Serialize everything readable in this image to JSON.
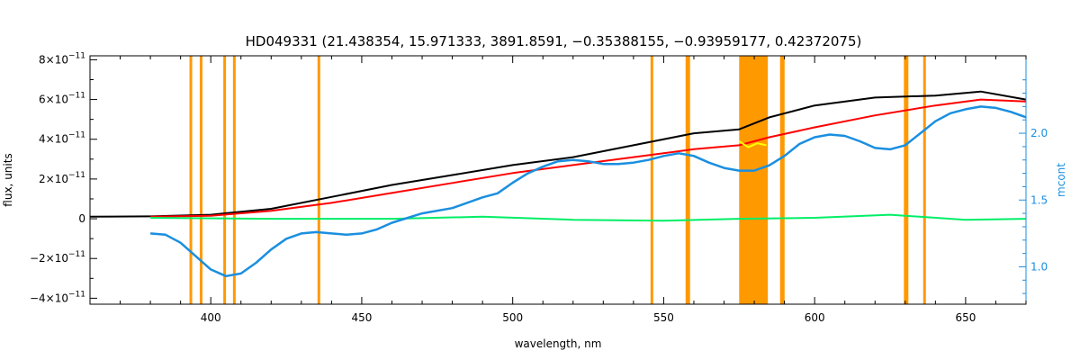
{
  "chart_data": {
    "type": "line",
    "title": "HD049331    (21.438354, 15.971333, 3891.8591, −0.35388155, −0.93959177, 0.42372075)",
    "xlabel": "wavelength, nm",
    "ylabel": "flux, units",
    "ylabel_right": "mcont",
    "xlim": [
      360,
      670
    ],
    "ylim": [
      -4.3e-11,
      8.2e-11
    ],
    "ylim_right": [
      0.72,
      2.58
    ],
    "grid": false,
    "x_ticks": [
      {
        "value": 400,
        "label": "400"
      },
      {
        "value": 450,
        "label": "450"
      },
      {
        "value": 500,
        "label": "500"
      },
      {
        "value": 550,
        "label": "550"
      },
      {
        "value": 600,
        "label": "600"
      },
      {
        "value": 650,
        "label": "650"
      }
    ],
    "y_ticks": [
      {
        "value": 8e-11,
        "mant": "8×10",
        "exp": "−11"
      },
      {
        "value": 6e-11,
        "mant": "6×10",
        "exp": "−11"
      },
      {
        "value": 4e-11,
        "mant": "4×10",
        "exp": "−11"
      },
      {
        "value": 2e-11,
        "mant": "2×10",
        "exp": "−11"
      },
      {
        "value": 0,
        "mant": "0",
        "exp": ""
      },
      {
        "value": -2e-11,
        "mant": "−2×10",
        "exp": "−11"
      },
      {
        "value": -4e-11,
        "mant": "−4×10",
        "exp": "−11"
      }
    ],
    "y_right_ticks": [
      {
        "value": 1.0,
        "label": "1.0"
      },
      {
        "value": 1.5,
        "label": "1.5"
      },
      {
        "value": 2.0,
        "label": "2.0"
      }
    ],
    "vertical_lines": [
      393.4,
      396.8,
      404.6,
      407.8,
      435.8,
      546.1,
      557.7,
      558.3,
      589.0,
      589.6,
      630.0,
      630.6,
      636.4
    ],
    "shaded_band": {
      "x": [
        575.0,
        584.5
      ],
      "color": "#ff9900"
    },
    "series": [
      {
        "color": "#000000",
        "points": [
          [
            360,
            1e-12
          ],
          [
            380,
            1.2e-12
          ],
          [
            400,
            2e-12
          ],
          [
            420,
            5e-12
          ],
          [
            440,
            1.1e-11
          ],
          [
            460,
            1.7e-11
          ],
          [
            480,
            2.2e-11
          ],
          [
            500,
            2.7e-11
          ],
          [
            520,
            3.1e-11
          ],
          [
            540,
            3.7e-11
          ],
          [
            560,
            4.3e-11
          ],
          [
            575,
            4.5e-11
          ],
          [
            585,
            5.1e-11
          ],
          [
            600,
            5.7e-11
          ],
          [
            620,
            6.1e-11
          ],
          [
            640,
            6.2e-11
          ],
          [
            655,
            6.4e-11
          ],
          [
            670,
            6e-11
          ]
        ]
      },
      {
        "color": "#ff0000",
        "points": [
          [
            380,
            1e-12
          ],
          [
            400,
            1.5e-12
          ],
          [
            420,
            4e-12
          ],
          [
            440,
            8e-12
          ],
          [
            460,
            1.3e-11
          ],
          [
            480,
            1.8e-11
          ],
          [
            500,
            2.3e-11
          ],
          [
            520,
            2.7e-11
          ],
          [
            540,
            3.1e-11
          ],
          [
            560,
            3.5e-11
          ],
          [
            575,
            3.7e-11
          ],
          [
            585,
            4.1e-11
          ],
          [
            600,
            4.6e-11
          ],
          [
            620,
            5.2e-11
          ],
          [
            640,
            5.7e-11
          ],
          [
            655,
            6e-11
          ],
          [
            670,
            5.9e-11
          ]
        ]
      },
      {
        "color": "#ffff00",
        "points": [
          [
            575,
            3.9e-11
          ],
          [
            578,
            3.6e-11
          ],
          [
            581,
            3.8e-11
          ],
          [
            584,
            3.7e-11
          ]
        ]
      },
      {
        "color": "#00ee66",
        "points": [
          [
            380,
            5e-13
          ],
          [
            420,
            0
          ],
          [
            460,
            0
          ],
          [
            490,
            1e-12
          ],
          [
            520,
            -5e-13
          ],
          [
            550,
            -1e-12
          ],
          [
            575,
            0
          ],
          [
            600,
            5e-13
          ],
          [
            625,
            2e-12
          ],
          [
            650,
            -5e-13
          ],
          [
            670,
            0
          ]
        ]
      },
      {
        "color": "#1a8fe0",
        "axis": "right",
        "points": [
          [
            380,
            1.25
          ],
          [
            385,
            1.24
          ],
          [
            390,
            1.18
          ],
          [
            395,
            1.08
          ],
          [
            400,
            0.98
          ],
          [
            405,
            0.93
          ],
          [
            410,
            0.95
          ],
          [
            415,
            1.03
          ],
          [
            420,
            1.13
          ],
          [
            425,
            1.21
          ],
          [
            430,
            1.25
          ],
          [
            435,
            1.26
          ],
          [
            440,
            1.25
          ],
          [
            445,
            1.24
          ],
          [
            450,
            1.25
          ],
          [
            455,
            1.28
          ],
          [
            460,
            1.33
          ],
          [
            470,
            1.4
          ],
          [
            480,
            1.44
          ],
          [
            490,
            1.52
          ],
          [
            495,
            1.55
          ],
          [
            500,
            1.63
          ],
          [
            505,
            1.7
          ],
          [
            510,
            1.75
          ],
          [
            515,
            1.79
          ],
          [
            520,
            1.8
          ],
          [
            525,
            1.79
          ],
          [
            530,
            1.77
          ],
          [
            535,
            1.77
          ],
          [
            540,
            1.78
          ],
          [
            545,
            1.8
          ],
          [
            550,
            1.83
          ],
          [
            555,
            1.85
          ],
          [
            560,
            1.83
          ],
          [
            565,
            1.78
          ],
          [
            570,
            1.74
          ],
          [
            575,
            1.72
          ],
          [
            580,
            1.72
          ],
          [
            585,
            1.76
          ],
          [
            590,
            1.83
          ],
          [
            595,
            1.92
          ],
          [
            600,
            1.97
          ],
          [
            605,
            1.99
          ],
          [
            610,
            1.98
          ],
          [
            615,
            1.94
          ],
          [
            620,
            1.89
          ],
          [
            625,
            1.88
          ],
          [
            630,
            1.91
          ],
          [
            635,
            2.0
          ],
          [
            640,
            2.09
          ],
          [
            645,
            2.15
          ],
          [
            650,
            2.18
          ],
          [
            655,
            2.2
          ],
          [
            660,
            2.19
          ],
          [
            665,
            2.16
          ],
          [
            670,
            2.12
          ]
        ]
      }
    ]
  }
}
